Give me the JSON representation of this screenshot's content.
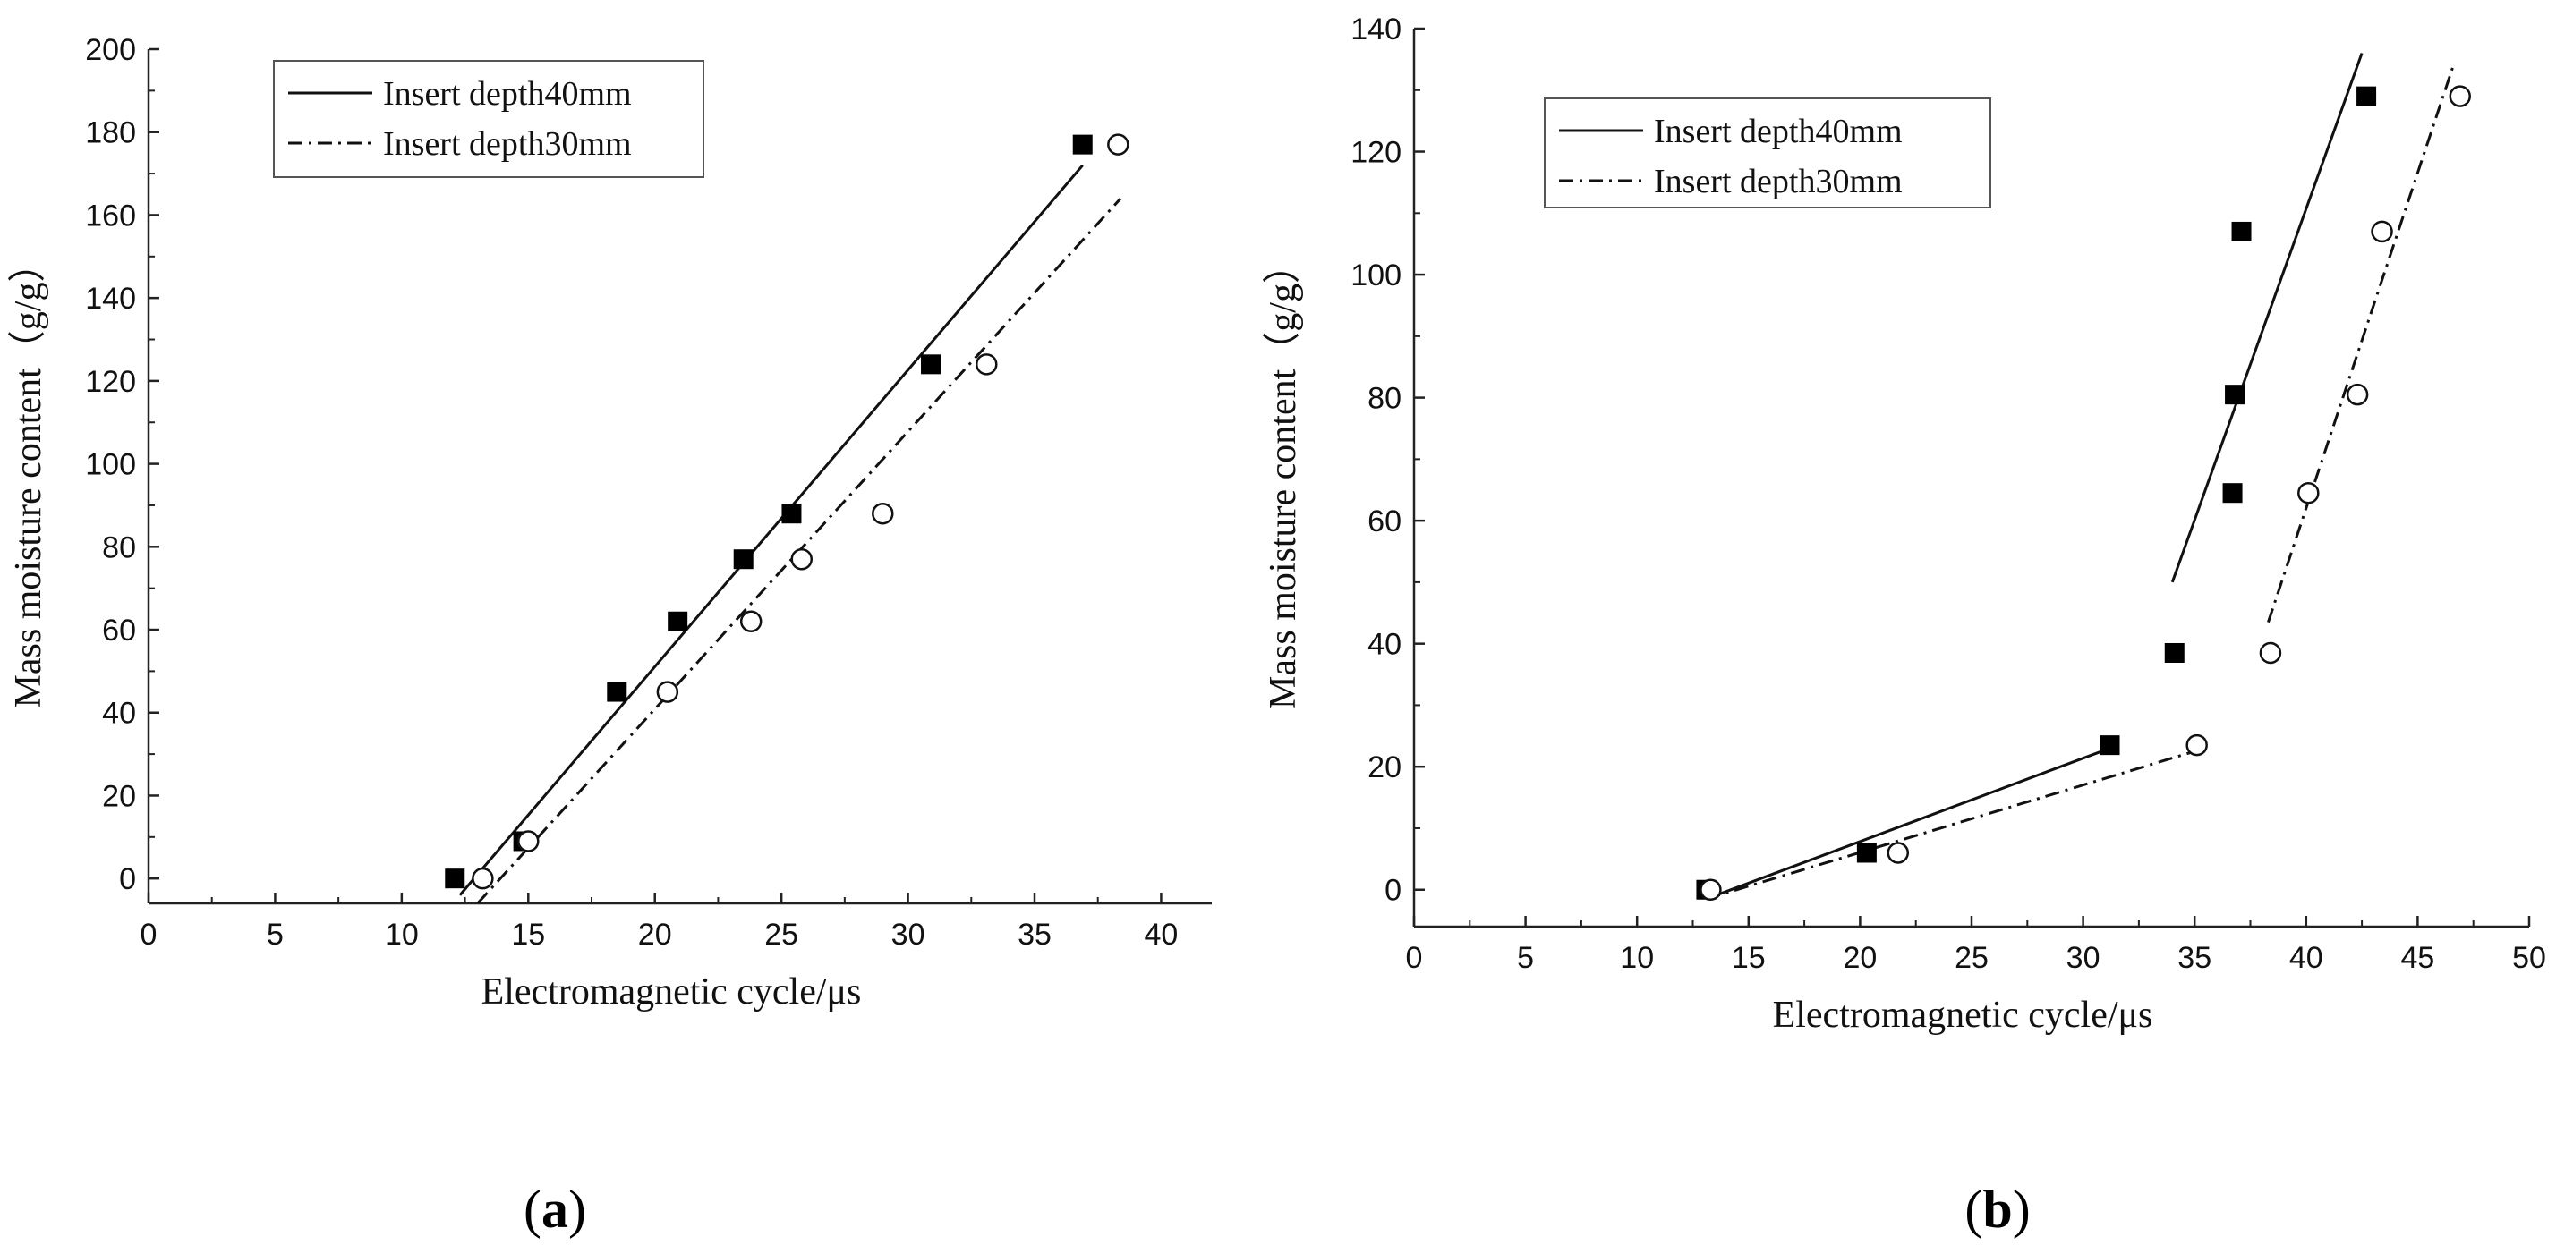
{
  "figure": {
    "panels": [
      {
        "id": "a",
        "caption_letter": "a"
      },
      {
        "id": "b",
        "caption_letter": "b"
      }
    ]
  },
  "chart_data": [
    {
      "type": "scatter",
      "panel": "a",
      "title": "",
      "xlabel": "Electromagnetic cycle/μs",
      "ylabel": "Mass moisture content（g/g）",
      "xlim": [
        0,
        42
      ],
      "ylim": [
        -6,
        200
      ],
      "xticks": [
        0,
        5,
        10,
        15,
        20,
        25,
        30,
        35,
        40
      ],
      "yticks": [
        0,
        20,
        40,
        60,
        80,
        100,
        120,
        140,
        160,
        180,
        200
      ],
      "grid": false,
      "legend_position": "top-left",
      "series": [
        {
          "name": "Insert depth40mm",
          "marker": "filled-square",
          "line": "solid",
          "points": [
            [
              12.1,
              0
            ],
            [
              14.8,
              9
            ],
            [
              18.5,
              45
            ],
            [
              20.9,
              62
            ],
            [
              23.5,
              77
            ],
            [
              25.4,
              88
            ],
            [
              30.9,
              124
            ],
            [
              36.9,
              177
            ]
          ],
          "fit_line": [
            [
              12.3,
              -4
            ],
            [
              36.9,
              172
            ]
          ]
        },
        {
          "name": "Insert depth30mm",
          "marker": "open-circle",
          "line": "dash-dot",
          "points": [
            [
              13.2,
              0
            ],
            [
              15.0,
              9
            ],
            [
              20.5,
              45
            ],
            [
              23.8,
              62
            ],
            [
              25.8,
              77
            ],
            [
              29.0,
              88
            ],
            [
              33.1,
              124
            ],
            [
              38.3,
              177
            ]
          ],
          "fit_line": [
            [
              13.0,
              -6
            ],
            [
              38.4,
              164
            ]
          ]
        }
      ]
    },
    {
      "type": "scatter",
      "panel": "b",
      "title": "",
      "xlabel": "Electromagnetic cycle/μs",
      "ylabel": "Mass moisture content（g/g）",
      "xlim": [
        0,
        50
      ],
      "ylim": [
        -6,
        140
      ],
      "xticks": [
        0,
        5,
        10,
        15,
        20,
        25,
        30,
        35,
        40,
        45,
        50
      ],
      "yticks": [
        0,
        20,
        40,
        60,
        80,
        100,
        120,
        140
      ],
      "grid": false,
      "legend_position": "top-left",
      "series": [
        {
          "name": "Insert depth40mm",
          "marker": "filled-square",
          "line": "solid",
          "points": [
            [
              13.1,
              0
            ],
            [
              20.3,
              6
            ],
            [
              31.2,
              23.5
            ],
            [
              34.1,
              38.5
            ],
            [
              36.7,
              64.5
            ],
            [
              36.8,
              80.5
            ],
            [
              37.1,
              107
            ],
            [
              42.7,
              129
            ]
          ],
          "fit_lines": [
            [
              [
                13.1,
                -1.5
              ],
              [
                31.2,
                23
              ]
            ],
            [
              [
                34.0,
                50
              ],
              [
                42.5,
                136
              ]
            ]
          ]
        },
        {
          "name": "Insert depth30mm",
          "marker": "open-circle",
          "line": "dash-dot",
          "points": [
            [
              13.3,
              0
            ],
            [
              21.7,
              6
            ],
            [
              35.1,
              23.5
            ],
            [
              38.4,
              38.5
            ],
            [
              40.1,
              64.5
            ],
            [
              42.3,
              80.5
            ],
            [
              43.4,
              107
            ],
            [
              46.9,
              129
            ]
          ],
          "fit_lines": [
            [
              [
                13.1,
                -1.5
              ],
              [
                35.0,
                22.5
              ]
            ],
            [
              [
                38.3,
                43.5
              ],
              [
                46.6,
                134
              ]
            ]
          ]
        }
      ]
    }
  ]
}
